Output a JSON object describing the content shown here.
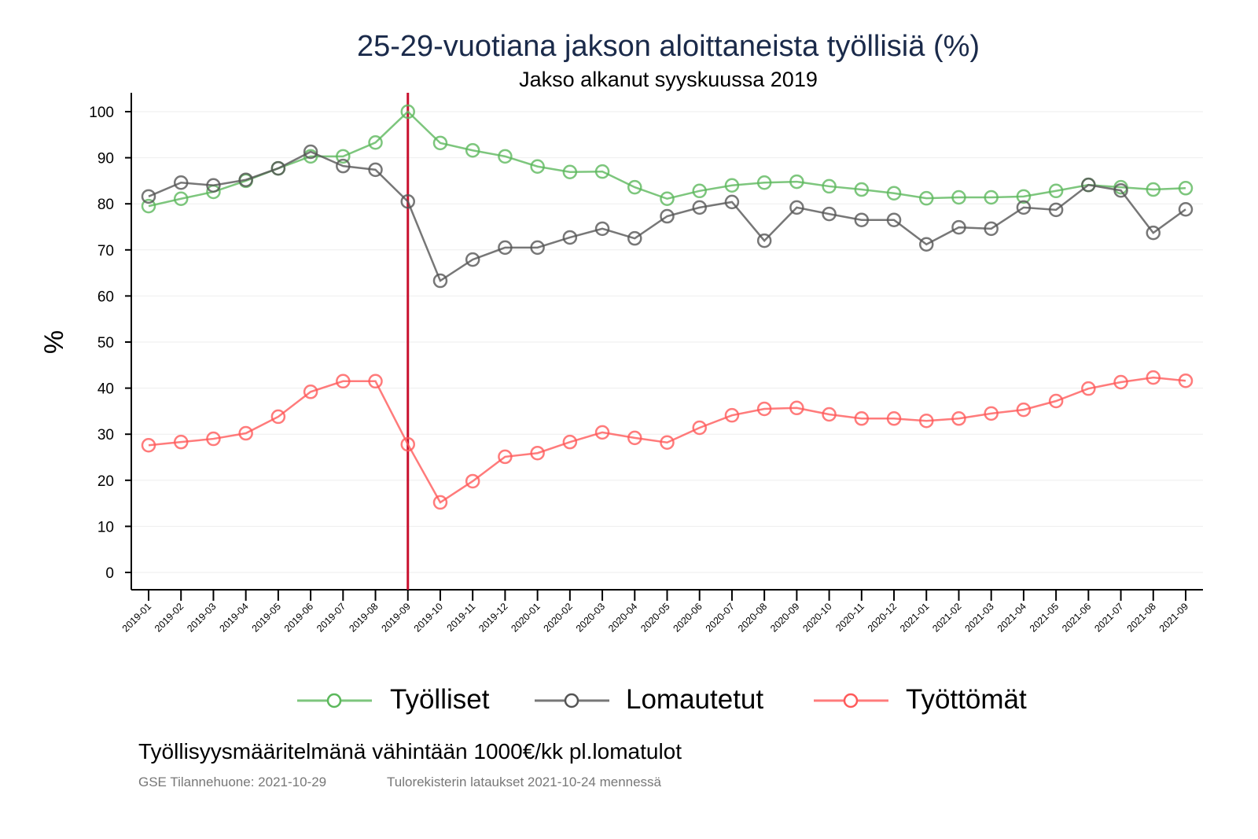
{
  "chart_data": {
    "type": "line",
    "title": "25-29-vuotiana jakson aloittaneista työllisiä (%)",
    "subtitle": "Jakso alkanut syyskuussa 2019",
    "xlabel": "",
    "ylabel": "%",
    "ylim": [
      0,
      100
    ],
    "yticks": [
      0,
      10,
      20,
      30,
      40,
      50,
      60,
      70,
      80,
      90,
      100
    ],
    "grid": true,
    "legend_position": "bottom",
    "reference_line": {
      "x": "2019-09",
      "color": "#c8102e"
    },
    "x": [
      "2019-01",
      "2019-02",
      "2019-03",
      "2019-04",
      "2019-05",
      "2019-06",
      "2019-07",
      "2019-08",
      "2019-09",
      "2019-10",
      "2019-11",
      "2019-12",
      "2020-01",
      "2020-02",
      "2020-03",
      "2020-04",
      "2020-05",
      "2020-06",
      "2020-07",
      "2020-08",
      "2020-09",
      "2020-10",
      "2020-11",
      "2020-12",
      "2021-01",
      "2021-02",
      "2021-03",
      "2021-04",
      "2021-05",
      "2021-06",
      "2021-07",
      "2021-08",
      "2021-09"
    ],
    "series": [
      {
        "name": "Työlliset",
        "color": "#5cb85c",
        "values": [
          79.5,
          81.1,
          82.6,
          85.0,
          87.7,
          90.3,
          90.3,
          93.3,
          100,
          93.2,
          91.6,
          90.3,
          88.1,
          86.9,
          87.0,
          83.6,
          81.1,
          82.8,
          84.0,
          84.6,
          84.8,
          83.8,
          83.1,
          82.3,
          81.2,
          81.4,
          81.4,
          81.6,
          82.8,
          84.1,
          83.6,
          83.1,
          83.4
        ]
      },
      {
        "name": "Lomautetut",
        "color": "#555555",
        "values": [
          81.6,
          84.6,
          84.0,
          85.2,
          87.7,
          91.3,
          88.2,
          87.4,
          80.5,
          63.3,
          67.9,
          70.5,
          70.5,
          72.7,
          74.6,
          72.5,
          77.3,
          79.2,
          80.4,
          72.0,
          79.2,
          77.8,
          76.5,
          76.5,
          71.2,
          74.9,
          74.6,
          79.2,
          78.7,
          84.1,
          82.9,
          73.7,
          78.8
        ]
      },
      {
        "name": "Työttömät",
        "color": "#ff5a5a",
        "values": [
          27.6,
          28.3,
          29.0,
          30.2,
          33.8,
          39.2,
          41.5,
          41.5,
          27.8,
          15.2,
          19.8,
          25.1,
          25.9,
          28.3,
          30.4,
          29.2,
          28.2,
          31.4,
          34.1,
          35.5,
          35.7,
          34.3,
          33.4,
          33.4,
          32.9,
          33.4,
          34.5,
          35.3,
          37.2,
          39.9,
          41.3,
          42.3,
          41.6
        ]
      }
    ]
  },
  "footer": {
    "note": "Työllisyysmääritelmänä vähintään 1000€/kk pl.lomatulot",
    "source": "GSE Tilannehuone: 2021-10-29",
    "data_note": "Tulorekisterin lataukset 2021-10-24 mennessä"
  }
}
